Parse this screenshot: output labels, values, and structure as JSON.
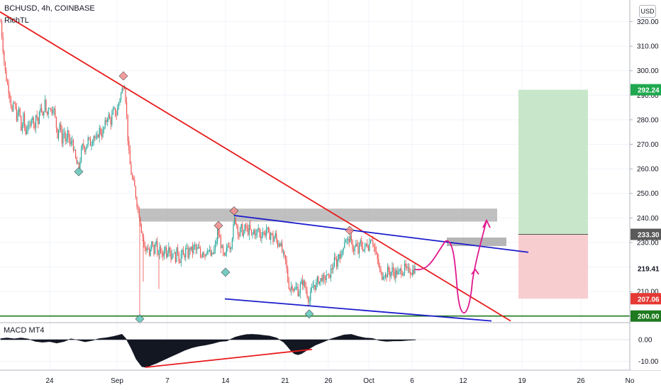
{
  "header": {
    "symbol_line": "BCHUSD, 4h, COINBASE",
    "indicator": "RichTL",
    "currency_button": "USD"
  },
  "price_axis": {
    "ticks": [
      "320.00",
      "310.00",
      "300.00",
      "290.00",
      "280.00",
      "270.00",
      "260.00",
      "250.00",
      "240.00",
      "230.00",
      "220.00",
      "210.00",
      "200.00"
    ]
  },
  "macd": {
    "label": "MACD MT4",
    "ticks": [
      "0.00",
      "-10.00"
    ]
  },
  "time_axis": {
    "labels": [
      "24",
      "Sep",
      "7",
      "14",
      "21",
      "26",
      "Oct",
      "6",
      "12",
      "19",
      "26",
      "No"
    ]
  },
  "badges": {
    "target": "292.24",
    "entry": "233.30",
    "last": "219.41",
    "stop": "207.06",
    "support": "200.00"
  },
  "colors": {
    "red": "#e81c1c",
    "blue": "#1c1ccc",
    "green": "#1f7a1f",
    "magenta": "#e0198f",
    "up": "#26a69a",
    "down": "#ef5350",
    "gray_zone": "#9e9e9e"
  },
  "chart_data": {
    "type": "candlestick",
    "symbol": "BCHUSD",
    "timeframe": "4h",
    "exchange": "COINBASE",
    "price_range": [
      197,
      324
    ],
    "levels": {
      "support": 200.0,
      "resistance_zone": [
        238.5,
        243.8
      ],
      "entry_zone": [
        228.5,
        232.0
      ]
    },
    "trade_box": {
      "entry": 233.3,
      "target": 292.24,
      "stop": 207.06
    },
    "last_price": 219.41,
    "trend_path": [
      [
        1,
        320
      ],
      [
        4,
        310
      ],
      [
        7,
        300
      ],
      [
        10,
        295
      ],
      [
        14,
        290
      ],
      [
        17,
        283
      ],
      [
        20,
        287
      ],
      [
        24,
        280
      ],
      [
        27,
        285
      ],
      [
        30,
        275
      ],
      [
        33,
        281
      ],
      [
        36,
        274
      ],
      [
        39,
        279
      ],
      [
        42,
        275
      ],
      [
        45,
        284
      ],
      [
        48,
        276
      ],
      [
        51,
        283
      ],
      [
        54,
        278
      ],
      [
        57,
        286
      ],
      [
        60,
        280
      ],
      [
        63,
        288
      ],
      [
        66,
        281
      ],
      [
        69,
        287
      ],
      [
        72,
        283
      ],
      [
        75,
        286
      ],
      [
        78,
        280
      ],
      [
        81,
        274
      ],
      [
        84,
        279
      ],
      [
        87,
        271
      ],
      [
        90,
        276
      ],
      [
        93,
        270
      ],
      [
        96,
        275
      ],
      [
        99,
        269
      ],
      [
        102,
        272
      ],
      [
        105,
        266
      ],
      [
        108,
        262
      ],
      [
        111,
        260
      ],
      [
        114,
        266
      ],
      [
        117,
        270
      ],
      [
        120,
        268
      ],
      [
        124,
        272
      ],
      [
        128,
        270
      ],
      [
        132,
        274
      ],
      [
        136,
        271
      ],
      [
        140,
        276
      ],
      [
        144,
        274
      ],
      [
        148,
        278
      ],
      [
        152,
        282
      ],
      [
        156,
        279
      ],
      [
        160,
        284
      ],
      [
        164,
        282
      ],
      [
        168,
        288
      ],
      [
        172,
        292
      ],
      [
        175,
        296
      ],
      [
        178,
        285
      ],
      [
        181,
        268
      ],
      [
        184,
        260
      ],
      [
        187,
        255
      ],
      [
        190,
        252
      ],
      [
        193,
        246
      ],
      [
        196,
        242
      ],
      [
        199,
        236
      ],
      [
        202,
        231
      ],
      [
        205,
        226
      ],
      [
        208,
        229
      ],
      [
        211,
        224
      ],
      [
        214,
        230
      ],
      [
        217,
        226
      ],
      [
        220,
        231
      ],
      [
        223,
        224
      ],
      [
        226,
        228
      ],
      [
        229,
        223
      ],
      [
        232,
        229
      ],
      [
        235,
        225
      ],
      [
        238,
        230
      ],
      [
        241,
        224
      ],
      [
        244,
        227
      ],
      [
        247,
        223
      ],
      [
        250,
        228
      ],
      [
        253,
        222
      ],
      [
        256,
        226
      ],
      [
        259,
        224
      ],
      [
        262,
        227
      ],
      [
        265,
        225
      ],
      [
        268,
        228
      ],
      [
        271,
        226
      ],
      [
        274,
        229
      ],
      [
        277,
        226
      ],
      [
        280,
        228
      ],
      [
        283,
        224
      ],
      [
        286,
        227
      ],
      [
        289,
        225
      ],
      [
        292,
        228
      ],
      [
        295,
        226
      ],
      [
        298,
        224
      ],
      [
        301,
        226
      ],
      [
        304,
        229
      ],
      [
        307,
        235
      ],
      [
        310,
        231
      ],
      [
        313,
        227
      ],
      [
        316,
        223
      ],
      [
        319,
        226
      ],
      [
        322,
        230
      ],
      [
        325,
        228
      ],
      [
        328,
        234
      ],
      [
        331,
        240
      ],
      [
        334,
        237
      ],
      [
        337,
        233
      ],
      [
        340,
        236
      ],
      [
        343,
        233
      ],
      [
        346,
        237
      ],
      [
        349,
        234
      ],
      [
        352,
        236
      ],
      [
        355,
        232
      ],
      [
        358,
        235
      ],
      [
        361,
        233
      ],
      [
        364,
        236
      ],
      [
        367,
        232
      ],
      [
        370,
        235
      ],
      [
        373,
        233
      ],
      [
        376,
        236
      ],
      [
        379,
        232
      ],
      [
        382,
        234
      ],
      [
        385,
        231
      ],
      [
        388,
        233
      ],
      [
        391,
        229
      ],
      [
        394,
        231
      ],
      [
        397,
        227
      ],
      [
        400,
        224
      ],
      [
        403,
        222
      ],
      [
        406,
        214
      ],
      [
        409,
        211
      ],
      [
        412,
        213
      ],
      [
        415,
        210
      ],
      [
        418,
        212
      ],
      [
        421,
        209
      ],
      [
        424,
        213
      ],
      [
        427,
        214
      ],
      [
        430,
        212
      ],
      [
        433,
        209
      ],
      [
        436,
        206
      ],
      [
        439,
        210
      ],
      [
        442,
        213
      ],
      [
        445,
        212
      ],
      [
        448,
        215
      ],
      [
        451,
        214
      ],
      [
        454,
        216
      ],
      [
        457,
        214
      ],
      [
        460,
        217
      ],
      [
        463,
        215
      ],
      [
        466,
        218
      ],
      [
        469,
        220
      ],
      [
        472,
        223
      ],
      [
        475,
        221
      ],
      [
        478,
        226
      ],
      [
        481,
        224
      ],
      [
        484,
        229
      ],
      [
        487,
        232
      ],
      [
        490,
        230
      ],
      [
        493,
        232
      ],
      [
        496,
        229
      ],
      [
        499,
        227
      ],
      [
        502,
        229
      ],
      [
        505,
        226
      ],
      [
        508,
        230
      ],
      [
        511,
        228
      ],
      [
        514,
        227
      ],
      [
        517,
        230
      ],
      [
        520,
        228
      ],
      [
        523,
        233
      ],
      [
        526,
        230
      ],
      [
        529,
        226
      ],
      [
        532,
        223
      ],
      [
        535,
        219
      ],
      [
        538,
        216
      ],
      [
        541,
        218
      ],
      [
        544,
        216
      ],
      [
        547,
        219
      ],
      [
        550,
        217
      ],
      [
        553,
        219
      ],
      [
        556,
        217
      ],
      [
        559,
        218
      ],
      [
        562,
        217
      ],
      [
        565,
        219
      ],
      [
        568,
        218
      ],
      [
        571,
        220
      ],
      [
        574,
        218
      ],
      [
        577,
        219
      ],
      [
        580,
        218
      ],
      [
        583,
        219
      ],
      [
        586,
        219.41
      ]
    ],
    "macd_histogram_path": [
      [
        1,
        0.5
      ],
      [
        10,
        0.8
      ],
      [
        20,
        0.4
      ],
      [
        30,
        0.8
      ],
      [
        40,
        0.3
      ],
      [
        50,
        -0.8
      ],
      [
        60,
        -1.2
      ],
      [
        70,
        -0.9
      ],
      [
        80,
        -1.6
      ],
      [
        90,
        -0.9
      ],
      [
        100,
        0.4
      ],
      [
        110,
        -0.2
      ],
      [
        120,
        -1.0
      ],
      [
        130,
        -0.4
      ],
      [
        140,
        0.5
      ],
      [
        150,
        0.9
      ],
      [
        160,
        1.5
      ],
      [
        165,
        1.9
      ],
      [
        172,
        2.5
      ],
      [
        178,
        0.3
      ],
      [
        185,
        -4
      ],
      [
        192,
        -9
      ],
      [
        200,
        -12.5
      ],
      [
        206,
        -12.8
      ],
      [
        212,
        -12
      ],
      [
        220,
        -11
      ],
      [
        230,
        -9.5
      ],
      [
        240,
        -8
      ],
      [
        250,
        -6.5
      ],
      [
        260,
        -5
      ],
      [
        270,
        -3.8
      ],
      [
        280,
        -3
      ],
      [
        290,
        -2.5
      ],
      [
        300,
        -1.8
      ],
      [
        310,
        -0.9
      ],
      [
        320,
        -0.6
      ],
      [
        325,
        0.2
      ],
      [
        332,
        1.2
      ],
      [
        340,
        1.9
      ],
      [
        348,
        2.4
      ],
      [
        356,
        2.5
      ],
      [
        364,
        2.3
      ],
      [
        372,
        2.0
      ],
      [
        380,
        1.7
      ],
      [
        390,
        0.8
      ],
      [
        400,
        -1.2
      ],
      [
        405,
        -3
      ],
      [
        410,
        -5
      ],
      [
        415,
        -6.5
      ],
      [
        420,
        -7
      ],
      [
        425,
        -6.5
      ],
      [
        430,
        -5.5
      ],
      [
        437,
        -4
      ],
      [
        445,
        -2.5
      ],
      [
        455,
        -1.2
      ],
      [
        465,
        0.2
      ],
      [
        475,
        1.2
      ],
      [
        485,
        2.2
      ],
      [
        495,
        2.5
      ],
      [
        505,
        1.5
      ],
      [
        515,
        0.8
      ],
      [
        525,
        0.6
      ],
      [
        535,
        -0.4
      ],
      [
        545,
        -0.8
      ],
      [
        555,
        -0.6
      ],
      [
        565,
        -0.6
      ],
      [
        575,
        -0.3
      ],
      [
        586,
        -0.1
      ]
    ],
    "markers": {
      "highs": [
        [
          174,
          297
        ],
        [
          330,
          242
        ],
        [
          308,
          236
        ],
        [
          493,
          234
        ]
      ],
      "lows": [
        [
          111,
          260
        ],
        [
          197,
          200
        ],
        [
          318,
          219
        ],
        [
          436,
          202
        ]
      ]
    },
    "lines": {
      "red_downtrend": [
        [
          0,
          324
        ],
        [
          720,
          198
        ]
      ],
      "blue_upper": [
        [
          330,
          241
        ],
        [
          745,
          226
        ]
      ],
      "blue_lower": [
        [
          317,
          207
        ],
        [
          693,
          198
        ]
      ],
      "red_macd": [
        [
          205,
          -12.8
        ],
        [
          440,
          -4.5
        ]
      ]
    }
  }
}
